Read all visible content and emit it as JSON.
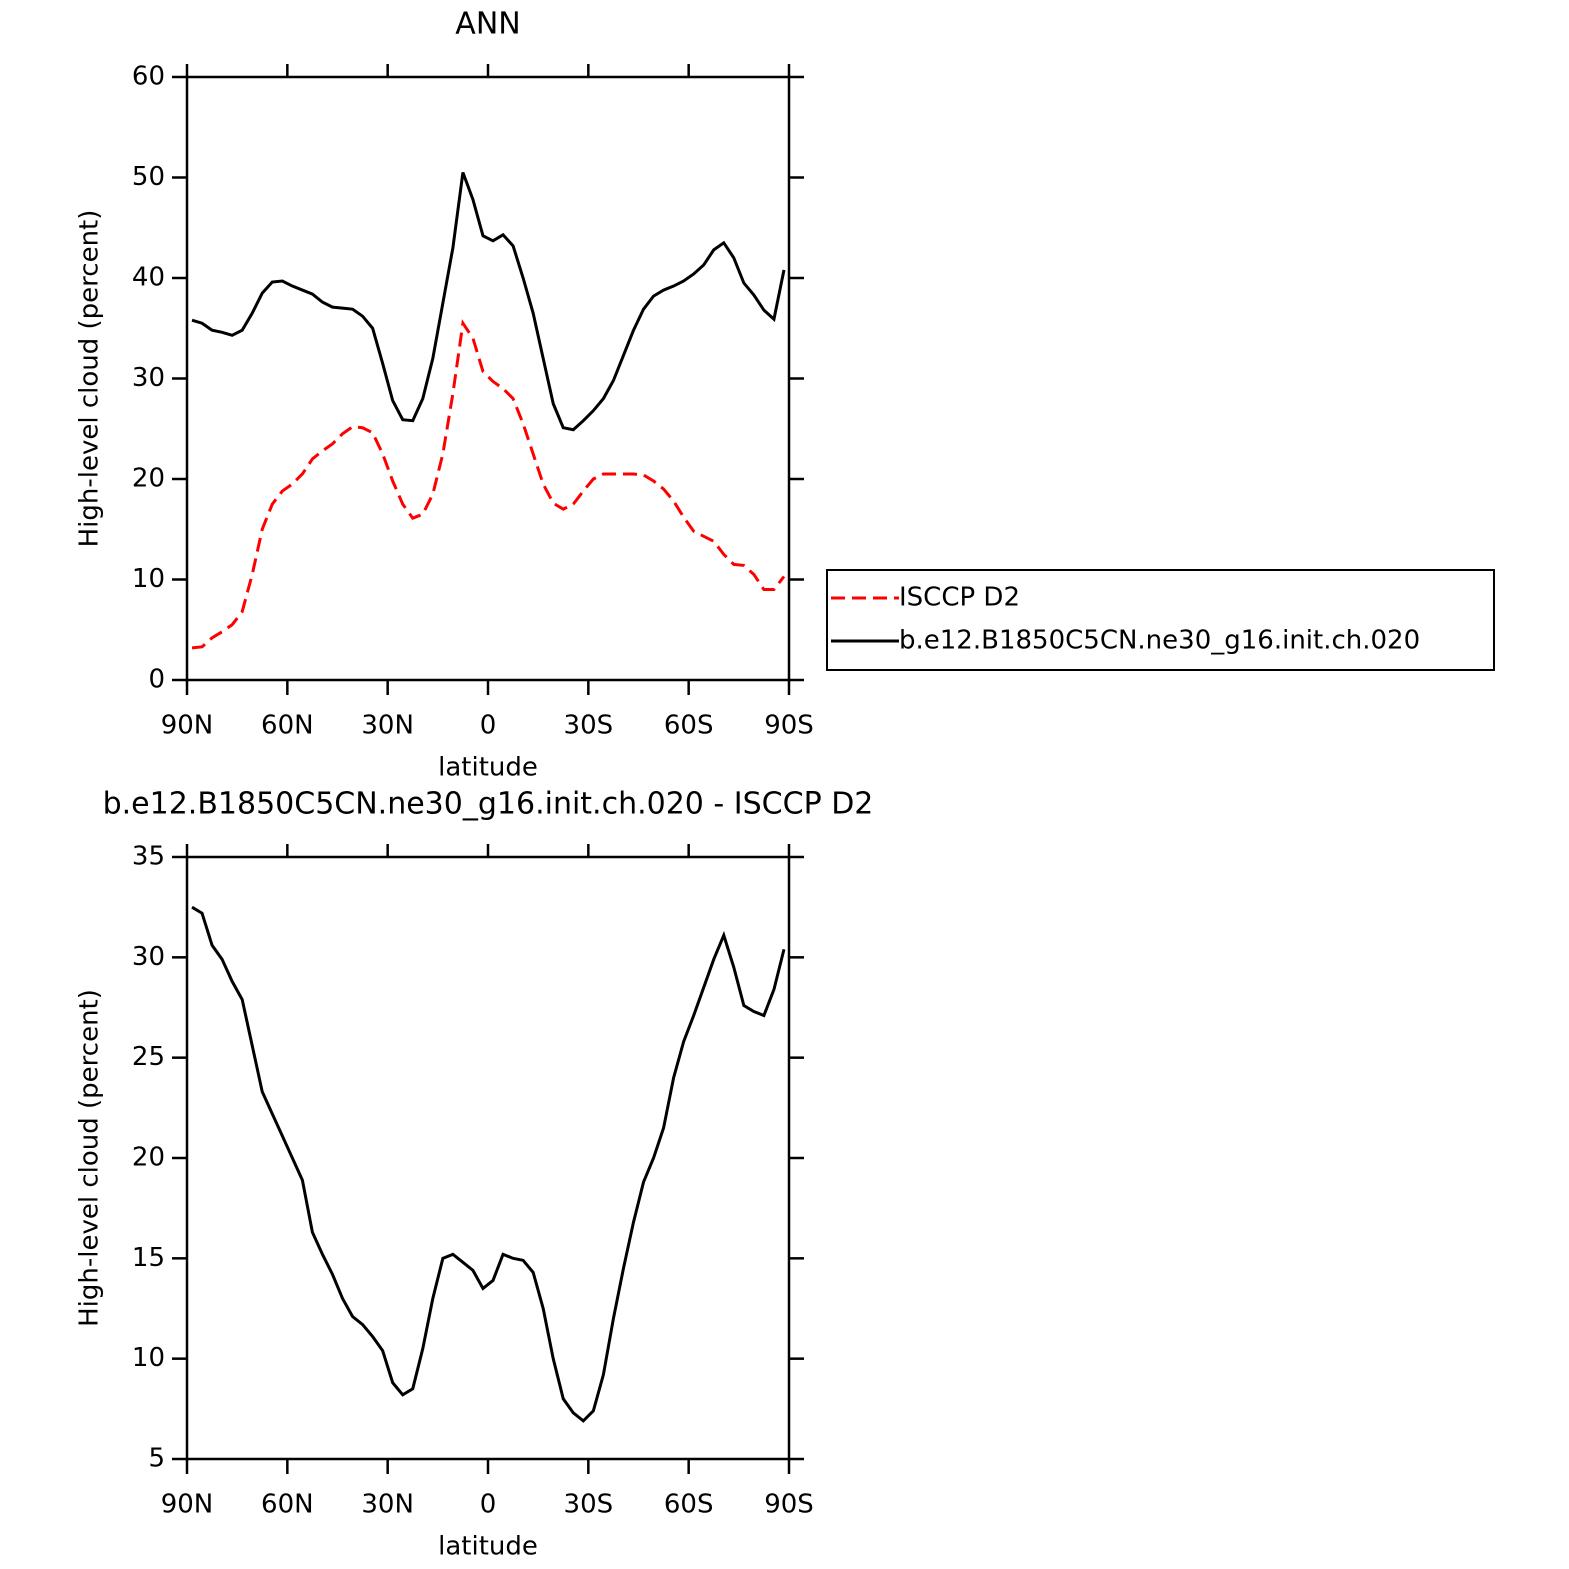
{
  "chart_data": [
    {
      "type": "line",
      "title": "ANN",
      "x_label": "latitude",
      "y_label": "High-level cloud (percent)",
      "x": [
        88.5,
        85.5,
        82.5,
        79.5,
        76.5,
        73.5,
        70.5,
        67.5,
        64.5,
        61.5,
        58.5,
        55.5,
        52.5,
        49.5,
        46.5,
        43.5,
        40.5,
        37.5,
        34.5,
        31.5,
        28.5,
        25.5,
        22.5,
        19.5,
        16.5,
        13.5,
        10.5,
        7.5,
        4.5,
        1.5,
        -1.5,
        -4.5,
        -7.5,
        -10.5,
        -13.5,
        -16.5,
        -19.5,
        -22.5,
        -25.5,
        -28.5,
        -31.5,
        -34.5,
        -37.5,
        -40.5,
        -43.5,
        -46.5,
        -49.5,
        -52.5,
        -55.5,
        -58.5,
        -61.5,
        -64.5,
        -67.5,
        -70.5,
        -73.5,
        -76.5,
        -79.5,
        -82.5,
        -85.5,
        -88.5
      ],
      "series": [
        {
          "name": "ISCCP D2",
          "color": "#ff0000",
          "dash": true,
          "values": [
            3.2,
            3.3,
            4.2,
            4.8,
            5.5,
            6.8,
            10.5,
            15.0,
            17.5,
            18.8,
            19.5,
            20.5,
            22.0,
            22.8,
            23.5,
            24.5,
            25.2,
            25.1,
            24.6,
            22.5,
            19.8,
            17.5,
            16.1,
            16.5,
            18.5,
            22.5,
            28.5,
            35.5,
            34.0,
            30.7,
            29.7,
            29.0,
            28.0,
            25.5,
            22.5,
            19.5,
            17.6,
            17.0,
            17.5,
            18.8,
            20.0,
            20.5,
            20.5,
            20.5,
            20.5,
            20.4,
            19.8,
            19.0,
            17.8,
            16.2,
            14.8,
            14.3,
            13.8,
            12.5,
            11.5,
            11.4,
            10.5,
            9.0,
            9.0,
            10.3
          ]
        },
        {
          "name": "b.e12.B1850C5CN.ne30_g16.init.ch.020",
          "color": "#000000",
          "dash": false,
          "values": [
            35.8,
            35.5,
            34.8,
            34.6,
            34.3,
            34.8,
            36.5,
            38.5,
            39.6,
            39.7,
            39.2,
            38.8,
            38.4,
            37.6,
            37.1,
            37.0,
            36.9,
            36.2,
            35.0,
            31.5,
            27.8,
            25.9,
            25.8,
            28.0,
            32.0,
            37.5,
            43.0,
            50.5,
            47.8,
            44.2,
            43.7,
            44.3,
            43.2,
            40.0,
            36.5,
            32.0,
            27.5,
            25.1,
            24.9,
            25.8,
            26.8,
            28.0,
            29.8,
            32.3,
            34.8,
            36.9,
            38.2,
            38.8,
            39.2,
            39.7,
            40.4,
            41.3,
            42.8,
            43.5,
            42.0,
            39.5,
            38.3,
            36.8,
            35.9,
            40.8
          ]
        }
      ],
      "xlim": [
        90,
        -90
      ],
      "xticks": [
        {
          "value": 90,
          "label": "90N"
        },
        {
          "value": 60,
          "label": "60N"
        },
        {
          "value": 30,
          "label": "30N"
        },
        0,
        {
          "value": -30,
          "label": "30S"
        },
        {
          "value": -60,
          "label": "60S"
        },
        {
          "value": -90,
          "label": "90S"
        }
      ],
      "ylim": [
        0,
        60
      ],
      "yticks": [
        0,
        10,
        20,
        30,
        40,
        50,
        60
      ],
      "legend": "right"
    },
    {
      "type": "line",
      "title": "b.e12.B1850C5CN.ne30_g16.init.ch.020 - ISCCP D2",
      "x_label": "latitude",
      "y_label": "High-level cloud (percent)",
      "x": [
        88.5,
        85.5,
        82.5,
        79.5,
        76.5,
        73.5,
        70.5,
        67.5,
        64.5,
        61.5,
        58.5,
        55.5,
        52.5,
        49.5,
        46.5,
        43.5,
        40.5,
        37.5,
        34.5,
        31.5,
        28.5,
        25.5,
        22.5,
        19.5,
        16.5,
        13.5,
        10.5,
        7.5,
        4.5,
        1.5,
        -1.5,
        -4.5,
        -7.5,
        -10.5,
        -13.5,
        -16.5,
        -19.5,
        -22.5,
        -25.5,
        -28.5,
        -31.5,
        -34.5,
        -37.5,
        -40.5,
        -43.5,
        -46.5,
        -49.5,
        -52.5,
        -55.5,
        -58.5,
        -61.5,
        -64.5,
        -67.5,
        -70.5,
        -73.5,
        -76.5,
        -79.5,
        -82.5,
        -85.5,
        -88.5
      ],
      "series": [
        {
          "color": "#000000",
          "dash": false,
          "values": [
            32.5,
            32.2,
            30.6,
            29.9,
            28.8,
            27.9,
            25.6,
            23.3,
            22.2,
            21.1,
            20.0,
            18.9,
            16.3,
            15.2,
            14.2,
            13.0,
            12.1,
            11.7,
            11.1,
            10.4,
            8.8,
            8.2,
            8.5,
            10.5,
            13.0,
            15.0,
            15.2,
            14.8,
            14.4,
            13.5,
            13.9,
            15.2,
            15.0,
            14.9,
            14.3,
            12.5,
            10.0,
            8.0,
            7.3,
            6.9,
            7.4,
            9.2,
            12.0,
            14.5,
            16.8,
            18.8,
            20.0,
            21.5,
            24.0,
            25.8,
            27.1,
            28.5,
            29.9,
            31.1,
            29.5,
            27.6,
            27.3,
            27.1,
            28.4,
            30.4
          ]
        }
      ],
      "xlim": [
        90,
        -90
      ],
      "xticks": [
        {
          "value": 90,
          "label": "90N"
        },
        {
          "value": 60,
          "label": "60N"
        },
        {
          "value": 30,
          "label": "30N"
        },
        0,
        {
          "value": -30,
          "label": "30S"
        },
        {
          "value": -60,
          "label": "60S"
        },
        {
          "value": -90,
          "label": "90S"
        }
      ],
      "ylim": [
        5,
        35
      ],
      "yticks": [
        5,
        10,
        15,
        20,
        25,
        30,
        35
      ]
    }
  ]
}
